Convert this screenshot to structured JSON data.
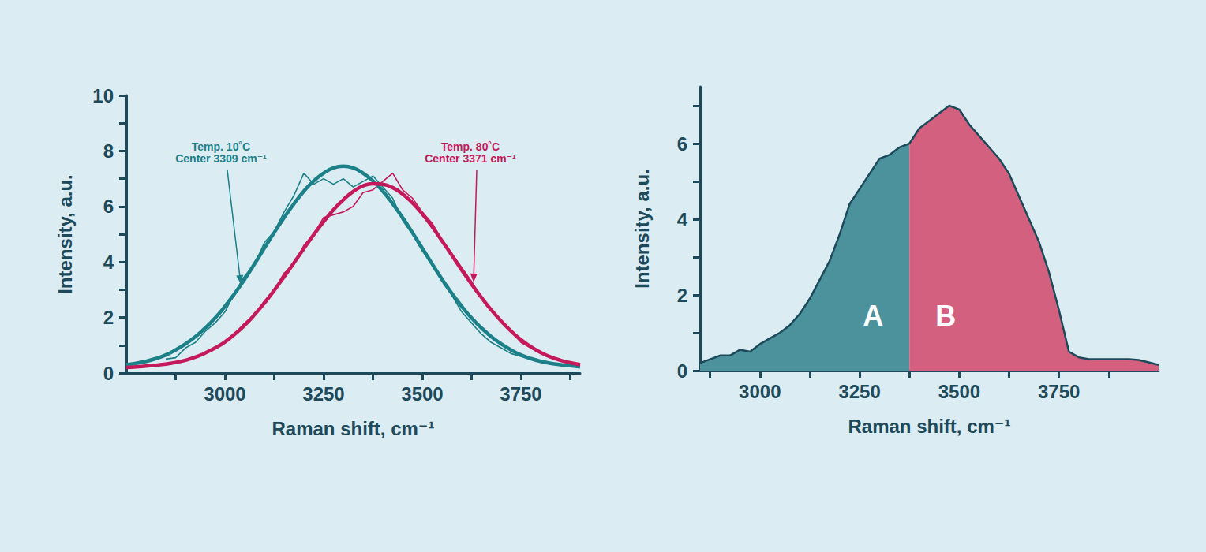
{
  "chart_data": [
    {
      "type": "line",
      "x_label": "Raman shift, cm⁻¹",
      "y_label": "Intensity, a.u.",
      "x": [
        2750,
        2775,
        2800,
        2825,
        2850,
        2875,
        2900,
        2925,
        2950,
        2975,
        3000,
        3025,
        3050,
        3075,
        3100,
        3125,
        3150,
        3175,
        3200,
        3225,
        3250,
        3275,
        3300,
        3325,
        3350,
        3375,
        3400,
        3425,
        3450,
        3475,
        3500,
        3525,
        3550,
        3575,
        3600,
        3625,
        3650,
        3675,
        3700,
        3725,
        3750,
        3775,
        3800,
        3825,
        3850,
        3875,
        3900
      ],
      "series": [
        {
          "color": "#1b8087",
          "line_style": "thin",
          "values": [
            null,
            null,
            null,
            null,
            0.5,
            0.55,
            0.9,
            1.1,
            1.5,
            1.8,
            2.2,
            2.9,
            3.5,
            3.9,
            4.7,
            5.1,
            5.8,
            6.4,
            7.2,
            6.8,
            7.0,
            6.8,
            7.0,
            6.7,
            6.9,
            7.1,
            6.7,
            6.3,
            5.5,
            5.0,
            4.4,
            3.9,
            3.3,
            2.8,
            2.2,
            1.8,
            1.4,
            1.1,
            0.9,
            0.7,
            0.6,
            0.5,
            0.4,
            0.35,
            0.3,
            null,
            null
          ]
        },
        {
          "color": "#c41a5b",
          "line_style": "thin",
          "values": [
            null,
            null,
            null,
            null,
            null,
            null,
            null,
            null,
            null,
            null,
            1.1,
            1.4,
            1.8,
            2.1,
            2.6,
            3.0,
            3.6,
            3.9,
            4.6,
            5.0,
            5.6,
            5.7,
            5.8,
            6.0,
            6.5,
            6.6,
            6.9,
            7.2,
            6.6,
            6.3,
            5.8,
            5.4,
            4.8,
            4.3,
            3.8,
            3.3,
            2.7,
            2.3,
            1.9,
            1.5,
            1.1,
            0.9,
            0.7,
            0.55,
            0.45,
            null,
            null
          ]
        },
        {
          "color": "#1b8087",
          "line_style": "thick",
          "values": [
            0.3,
            0.35,
            0.42,
            0.52,
            0.65,
            0.83,
            1.05,
            1.31,
            1.62,
            1.98,
            2.4,
            2.87,
            3.38,
            3.93,
            4.5,
            5.06,
            5.6,
            6.1,
            6.55,
            6.92,
            7.2,
            7.39,
            7.45,
            7.39,
            7.2,
            6.92,
            6.55,
            6.1,
            5.6,
            5.06,
            4.5,
            3.93,
            3.38,
            2.87,
            2.4,
            1.98,
            1.62,
            1.31,
            1.05,
            0.83,
            0.65,
            0.52,
            0.42,
            0.35,
            0.3,
            0.26,
            0.22
          ]
        },
        {
          "color": "#c41a5b",
          "line_style": "thick",
          "values": [
            0.2,
            0.22,
            0.25,
            0.28,
            0.32,
            0.38,
            0.46,
            0.57,
            0.72,
            0.9,
            1.12,
            1.4,
            1.72,
            2.1,
            2.52,
            2.98,
            3.47,
            3.97,
            4.48,
            4.98,
            5.45,
            5.88,
            6.24,
            6.54,
            6.74,
            6.82,
            6.8,
            6.68,
            6.45,
            6.13,
            5.73,
            5.27,
            4.76,
            4.24,
            3.71,
            3.2,
            2.72,
            2.27,
            1.87,
            1.51,
            1.2,
            0.95,
            0.74,
            0.58,
            0.46,
            0.37,
            0.3
          ]
        }
      ],
      "xlim": [
        2750,
        3900
      ],
      "xticks": [
        3000,
        3250,
        3500,
        3750
      ],
      "ylim": [
        0,
        10
      ],
      "yticks": [
        0,
        2,
        4,
        6,
        8,
        10
      ],
      "grid": false,
      "annotations": [
        {
          "text": [
            "Temp. 10˚C",
            "Center 3309 cm⁻¹"
          ],
          "color": "#1b8087",
          "x": 2990,
          "y": 7.93,
          "arrow_x": 3040,
          "arrow_y": 3.21
        },
        {
          "text": [
            "Temp. 80˚C",
            "Center 3371 cm⁻¹"
          ],
          "color": "#c41a5b",
          "x": 3622,
          "y": 7.93,
          "arrow_x": 3630,
          "arrow_y": 3.27
        }
      ]
    },
    {
      "type": "area",
      "x_label": "Raman shift, cm⁻¹",
      "y_label": "Intensity, a.u.",
      "x": [
        2850,
        2875,
        2900,
        2925,
        2950,
        2975,
        3000,
        3025,
        3050,
        3075,
        3100,
        3125,
        3150,
        3175,
        3200,
        3225,
        3250,
        3275,
        3300,
        3325,
        3350,
        3375,
        3400,
        3425,
        3450,
        3475,
        3500,
        3525,
        3550,
        3575,
        3600,
        3625,
        3650,
        3675,
        3700,
        3725,
        3750,
        3775,
        3800,
        3825,
        3850,
        3875,
        3900,
        3925,
        3950,
        3975,
        4000
      ],
      "series": [
        {
          "name": "A",
          "color": "#4b929d",
          "values": [
            0.2,
            0.3,
            0.4,
            0.4,
            0.55,
            0.5,
            0.7,
            0.85,
            1.0,
            1.2,
            1.5,
            1.9,
            2.4,
            2.9,
            3.6,
            4.4,
            4.8,
            5.2,
            5.6,
            5.7,
            5.9,
            6.0,
            null,
            null,
            null,
            null,
            null,
            null,
            null,
            null,
            null,
            null,
            null,
            null,
            null,
            null,
            null,
            null,
            null,
            null,
            null,
            null,
            null,
            null,
            null,
            null,
            null
          ]
        },
        {
          "name": "B",
          "color": "#d4607f",
          "values": [
            null,
            null,
            null,
            null,
            null,
            null,
            null,
            null,
            null,
            null,
            null,
            null,
            null,
            null,
            null,
            null,
            null,
            null,
            null,
            null,
            null,
            6.0,
            6.4,
            6.6,
            6.8,
            7.0,
            6.9,
            6.5,
            6.2,
            5.9,
            5.6,
            5.2,
            4.6,
            4.0,
            3.4,
            2.6,
            1.6,
            0.5,
            0.35,
            0.3,
            0.3,
            0.3,
            0.3,
            0.3,
            0.28,
            0.22,
            0.15
          ]
        }
      ],
      "xlim": [
        2850,
        4000
      ],
      "xticks": [
        3000,
        3250,
        3500,
        3750
      ],
      "ylim": [
        0,
        7.5
      ],
      "yticks": [
        0,
        2,
        4,
        6
      ],
      "grid": false
    }
  ]
}
